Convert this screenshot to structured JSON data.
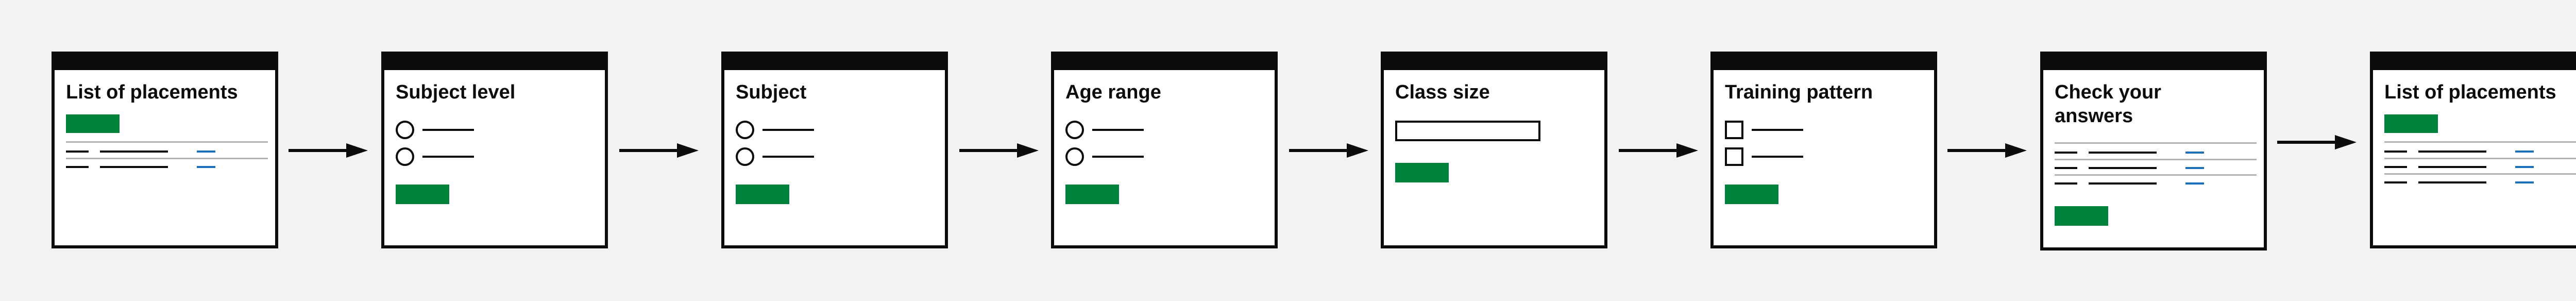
{
  "colors": {
    "background": "#f3f2f1",
    "frame": "#0b0c0c",
    "button_green": "#00823b",
    "link_blue": "#1d70b8",
    "divider_grey": "#b1b4b6"
  },
  "screens": [
    {
      "title": "List of placements",
      "kind": "list"
    },
    {
      "title": "Subject level",
      "kind": "radios"
    },
    {
      "title": "Subject",
      "kind": "radios"
    },
    {
      "title": "Age range",
      "kind": "radios"
    },
    {
      "title": "Class size",
      "kind": "text-input"
    },
    {
      "title": "Training pattern",
      "kind": "checkboxes"
    },
    {
      "title": "Check your answers",
      "kind": "summary"
    },
    {
      "title": "List of placements",
      "kind": "list"
    }
  ]
}
